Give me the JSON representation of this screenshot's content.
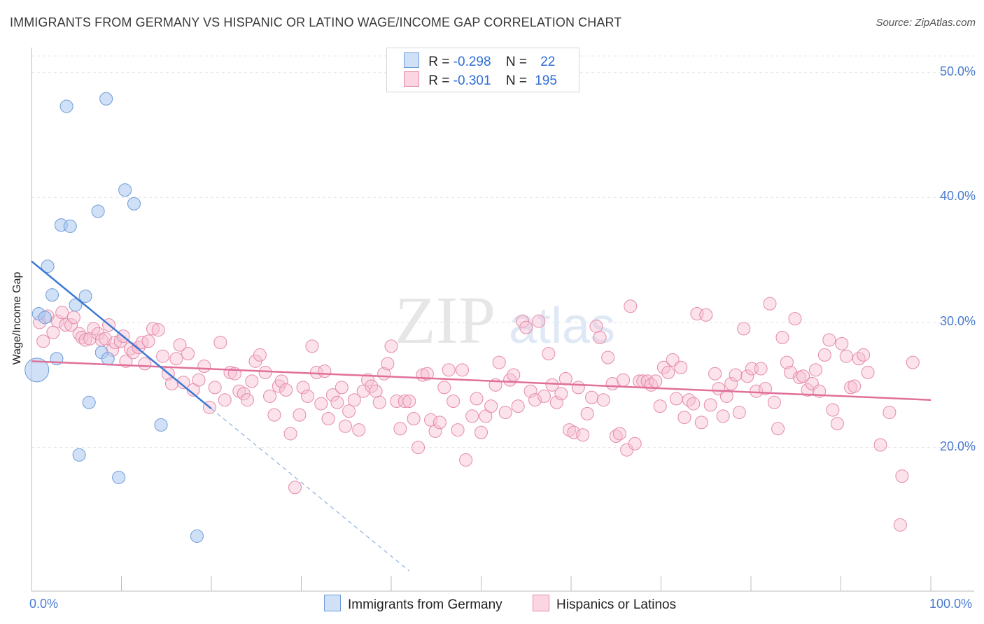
{
  "title": "IMMIGRANTS FROM GERMANY VS HISPANIC OR LATINO WAGE/INCOME GAP CORRELATION CHART",
  "source": "Source: ZipAtlas.com",
  "watermark": {
    "zip": "ZIP",
    "atlas": "atlas"
  },
  "legend": {
    "rows": [
      {
        "r_label": "R =",
        "r_value": "-0.298",
        "n_label": "N =",
        "n_value": "22",
        "color": "#a9c8f0",
        "border": "#6f9bd8"
      },
      {
        "r_label": "R =",
        "r_value": "-0.301",
        "n_label": "N =",
        "n_value": "195",
        "color": "#f7bfd2",
        "border": "#e58aa8"
      }
    ]
  },
  "bottom_legend": {
    "series1": "Immigrants from Germany",
    "series2": "Hispanics or Latinos"
  },
  "chart_data": {
    "type": "scatter",
    "title": "IMMIGRANTS FROM GERMANY VS HISPANIC OR LATINO WAGE/INCOME GAP CORRELATION CHART",
    "xlabel": "",
    "ylabel": "Wage/Income Gap",
    "xlim": [
      0,
      100
    ],
    "ylim": [
      8.5,
      52
    ],
    "x_tick_labels": [
      "0.0%",
      "100.0%"
    ],
    "y_ticks": [
      20,
      30,
      40,
      50
    ],
    "y_tick_labels": [
      "20.0%",
      "30.0%",
      "40.0%",
      "50.0%"
    ],
    "series": [
      {
        "name": "Immigrants from Germany",
        "color": "#a9c8f0",
        "stroke": "#6f9bd8",
        "trend": {
          "x0": 0,
          "y0": 34.9,
          "x1": 20,
          "y1": 23.1,
          "dash_to_x": 42,
          "line_color": "#3a78d4"
        },
        "points": [
          [
            0.6,
            26.2,
            1
          ],
          [
            0.8,
            30.7,
            0
          ],
          [
            1.5,
            30.4,
            0
          ],
          [
            1.8,
            34.5,
            0
          ],
          [
            2.3,
            32.2,
            0
          ],
          [
            2.8,
            27.1,
            0
          ],
          [
            3.3,
            37.8,
            0
          ],
          [
            3.9,
            47.3,
            0
          ],
          [
            4.3,
            37.7,
            0
          ],
          [
            4.9,
            31.4,
            0
          ],
          [
            5.3,
            19.4,
            0
          ],
          [
            6.0,
            32.1,
            0
          ],
          [
            6.4,
            23.6,
            0
          ],
          [
            7.4,
            38.9,
            0
          ],
          [
            7.8,
            27.6,
            0
          ],
          [
            8.3,
            47.9,
            0
          ],
          [
            8.5,
            27.1,
            0
          ],
          [
            9.7,
            17.6,
            0
          ],
          [
            10.4,
            40.6,
            0
          ],
          [
            11.4,
            39.5,
            0
          ],
          [
            14.4,
            21.8,
            0
          ],
          [
            18.4,
            12.9,
            0
          ]
        ]
      },
      {
        "name": "Hispanics or Latinos",
        "color": "#f7bfd2",
        "stroke": "#e58aa8",
        "trend": {
          "x0": 0,
          "y0": 26.9,
          "x1": 100,
          "y1": 23.8,
          "line_color": "#e0709a"
        },
        "points": [
          [
            0.9,
            30.0
          ],
          [
            1.3,
            28.5
          ],
          [
            1.8,
            30.5
          ],
          [
            2.4,
            29.2
          ],
          [
            2.9,
            30.1
          ],
          [
            3.4,
            30.8
          ],
          [
            3.8,
            29.8
          ],
          [
            4.4,
            29.8
          ],
          [
            4.7,
            30.4
          ],
          [
            5.3,
            29.1
          ],
          [
            5.6,
            28.8
          ],
          [
            6.0,
            28.6
          ],
          [
            6.5,
            28.7
          ],
          [
            6.9,
            29.5
          ],
          [
            7.4,
            29.1
          ],
          [
            7.8,
            28.6
          ],
          [
            8.2,
            28.7
          ],
          [
            8.6,
            29.8
          ],
          [
            9.0,
            27.8
          ],
          [
            9.3,
            28.4
          ],
          [
            9.9,
            28.5
          ],
          [
            10.2,
            28.9
          ],
          [
            10.5,
            26.9
          ],
          [
            11.0,
            27.9
          ],
          [
            11.3,
            27.6
          ],
          [
            11.9,
            28.0
          ],
          [
            12.3,
            28.4
          ],
          [
            12.6,
            26.7
          ],
          [
            13.0,
            28.5
          ],
          [
            13.5,
            29.5
          ],
          [
            14.1,
            29.4
          ],
          [
            14.6,
            27.3
          ],
          [
            15.2,
            25.9
          ],
          [
            15.6,
            25.1
          ],
          [
            16.1,
            27.1
          ],
          [
            16.5,
            28.2
          ],
          [
            16.9,
            25.2
          ],
          [
            17.4,
            27.5
          ],
          [
            18.0,
            24.6
          ],
          [
            18.6,
            25.4
          ],
          [
            19.2,
            26.5
          ],
          [
            19.8,
            23.2
          ],
          [
            20.4,
            24.8
          ],
          [
            21.0,
            28.4
          ],
          [
            21.5,
            23.8
          ],
          [
            22.1,
            26.0
          ],
          [
            22.6,
            25.9
          ],
          [
            23.1,
            24.5
          ],
          [
            23.6,
            24.3
          ],
          [
            24.0,
            23.8
          ],
          [
            24.5,
            25.3
          ],
          [
            24.9,
            26.9
          ],
          [
            25.4,
            27.4
          ],
          [
            26.0,
            26.0
          ],
          [
            26.5,
            24.1
          ],
          [
            27.0,
            22.6
          ],
          [
            27.5,
            24.9
          ],
          [
            27.8,
            25.3
          ],
          [
            28.3,
            24.6
          ],
          [
            28.8,
            21.1
          ],
          [
            29.3,
            16.8
          ],
          [
            29.8,
            22.6
          ],
          [
            30.2,
            24.8
          ],
          [
            30.7,
            24.1
          ],
          [
            31.2,
            28.1
          ],
          [
            31.7,
            26.0
          ],
          [
            32.2,
            23.5
          ],
          [
            32.6,
            26.1
          ],
          [
            33.0,
            22.3
          ],
          [
            33.5,
            24.2
          ],
          [
            34.0,
            23.6
          ],
          [
            34.5,
            24.8
          ],
          [
            34.9,
            21.7
          ],
          [
            35.3,
            22.9
          ],
          [
            35.9,
            23.8
          ],
          [
            36.4,
            21.4
          ],
          [
            36.9,
            24.5
          ],
          [
            37.4,
            25.4
          ],
          [
            37.8,
            24.9
          ],
          [
            38.3,
            24.5
          ],
          [
            38.7,
            23.6
          ],
          [
            39.2,
            25.9
          ],
          [
            39.6,
            26.7
          ],
          [
            40.0,
            28.1
          ],
          [
            40.6,
            23.7
          ],
          [
            41.0,
            21.5
          ],
          [
            41.5,
            23.7
          ],
          [
            42.0,
            23.7
          ],
          [
            42.5,
            22.3
          ],
          [
            43.0,
            20.0
          ],
          [
            43.5,
            25.8
          ],
          [
            44.0,
            25.9
          ],
          [
            44.4,
            22.2
          ],
          [
            44.9,
            21.3
          ],
          [
            45.4,
            22.0
          ],
          [
            45.9,
            24.8
          ],
          [
            46.4,
            26.2
          ],
          [
            46.9,
            23.7
          ],
          [
            47.4,
            21.4
          ],
          [
            47.9,
            26.2
          ],
          [
            48.3,
            19.0
          ],
          [
            49.0,
            22.5
          ],
          [
            49.5,
            23.9
          ],
          [
            50.0,
            21.2
          ],
          [
            50.5,
            22.5
          ],
          [
            51.1,
            23.3
          ],
          [
            51.6,
            25.0
          ],
          [
            52.0,
            26.8
          ],
          [
            52.7,
            22.8
          ],
          [
            53.2,
            25.4
          ],
          [
            53.6,
            25.8
          ],
          [
            54.1,
            23.3
          ],
          [
            54.6,
            30.1
          ],
          [
            55.0,
            29.6
          ],
          [
            55.5,
            24.5
          ],
          [
            56.0,
            23.8
          ],
          [
            56.4,
            30.1
          ],
          [
            57.0,
            24.1
          ],
          [
            57.5,
            27.5
          ],
          [
            57.9,
            25.0
          ],
          [
            58.4,
            23.6
          ],
          [
            58.9,
            24.3
          ],
          [
            59.4,
            25.5
          ],
          [
            59.8,
            21.4
          ],
          [
            60.3,
            21.2
          ],
          [
            60.8,
            24.8
          ],
          [
            61.3,
            21.0
          ],
          [
            61.8,
            22.7
          ],
          [
            62.3,
            24.0
          ],
          [
            62.8,
            29.7
          ],
          [
            63.2,
            28.8
          ],
          [
            63.6,
            23.8
          ],
          [
            64.1,
            27.2
          ],
          [
            64.6,
            25.1
          ],
          [
            65.0,
            20.9
          ],
          [
            65.4,
            21.1
          ],
          [
            65.8,
            25.4
          ],
          [
            66.2,
            19.8
          ],
          [
            66.6,
            31.3
          ],
          [
            67.1,
            20.3
          ],
          [
            67.6,
            25.3
          ],
          [
            68.0,
            25.3
          ],
          [
            68.5,
            25.3
          ],
          [
            68.9,
            25.0
          ],
          [
            69.4,
            25.3
          ],
          [
            69.9,
            23.3
          ],
          [
            70.3,
            26.4
          ],
          [
            70.8,
            26.0
          ],
          [
            71.3,
            27.0
          ],
          [
            71.7,
            23.9
          ],
          [
            72.2,
            26.4
          ],
          [
            72.6,
            22.4
          ],
          [
            73.1,
            23.8
          ],
          [
            73.6,
            23.5
          ],
          [
            74.0,
            30.7
          ],
          [
            74.5,
            22.0
          ],
          [
            75.0,
            30.6
          ],
          [
            75.5,
            23.4
          ],
          [
            76.0,
            25.9
          ],
          [
            76.4,
            24.7
          ],
          [
            76.9,
            22.5
          ],
          [
            77.3,
            24.1
          ],
          [
            77.8,
            25.1
          ],
          [
            78.3,
            25.8
          ],
          [
            78.7,
            22.8
          ],
          [
            79.2,
            29.5
          ],
          [
            79.6,
            25.7
          ],
          [
            80.1,
            26.3
          ],
          [
            80.6,
            24.5
          ],
          [
            81.1,
            26.3
          ],
          [
            81.6,
            24.7
          ],
          [
            82.1,
            31.5
          ],
          [
            82.6,
            23.6
          ],
          [
            83.0,
            21.5
          ],
          [
            83.5,
            28.8
          ],
          [
            84.0,
            26.8
          ],
          [
            84.4,
            26.0
          ],
          [
            84.9,
            30.3
          ],
          [
            85.4,
            25.6
          ],
          [
            85.8,
            25.7
          ],
          [
            86.3,
            24.6
          ],
          [
            86.8,
            25.1
          ],
          [
            87.2,
            26.2
          ],
          [
            87.6,
            24.5
          ],
          [
            88.2,
            27.4
          ],
          [
            88.7,
            28.6
          ],
          [
            89.1,
            23.0
          ],
          [
            89.6,
            21.9
          ],
          [
            90.1,
            28.3
          ],
          [
            90.6,
            27.3
          ],
          [
            91.1,
            24.8
          ],
          [
            91.5,
            24.9
          ],
          [
            92.0,
            27.1
          ],
          [
            92.5,
            27.4
          ],
          [
            93.0,
            26.0
          ],
          [
            94.4,
            20.2
          ],
          [
            95.4,
            22.8
          ],
          [
            96.6,
            13.8
          ],
          [
            96.8,
            17.7
          ],
          [
            98.0,
            26.8
          ]
        ]
      }
    ]
  }
}
